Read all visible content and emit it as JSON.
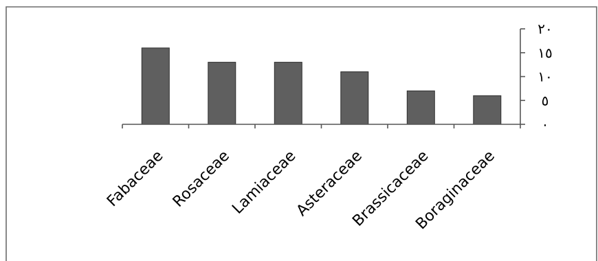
{
  "chart_data": {
    "type": "bar",
    "categories": [
      "Fabaceae",
      "Rosaceae",
      "Lamiaceae",
      "Asteraceae",
      "Brassicaceae",
      "Boraginaceae"
    ],
    "values": [
      16,
      13,
      13,
      11,
      7,
      6
    ],
    "ylim": [
      0,
      20
    ],
    "yticks": [
      0,
      5,
      10,
      15,
      20
    ],
    "ytick_labels": [
      "٠",
      "٥",
      "١٠",
      "١٥",
      "٢٠"
    ],
    "yaxis_side": "right",
    "grid": false,
    "legend": "none",
    "bar_color": "#5f5f5f"
  }
}
